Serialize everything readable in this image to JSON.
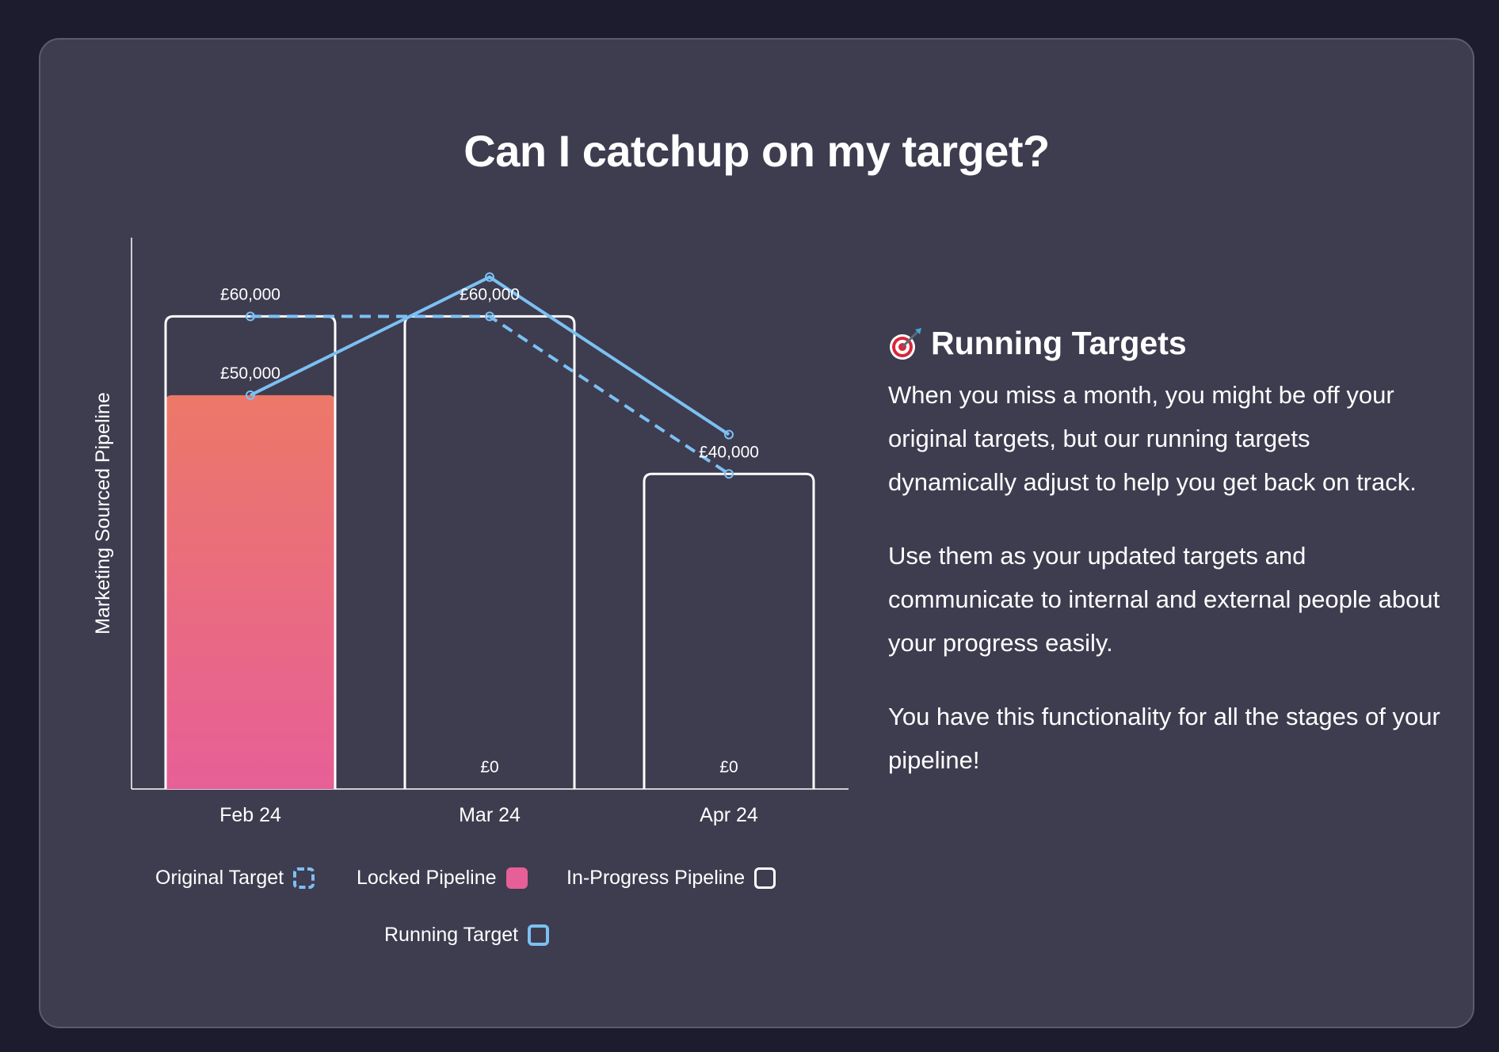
{
  "title": "Can I catchup on my target?",
  "chart_data": {
    "type": "bar",
    "title": "",
    "ylabel": "Marketing Sourced Pipeline",
    "xlabel": "",
    "categories": [
      "Feb 24",
      "Mar 24",
      "Apr 24"
    ],
    "ylim": [
      0,
      70000
    ],
    "series": [
      {
        "name": "Original Target",
        "kind": "line",
        "style": "dashed",
        "color": "#7cc0f3",
        "values": [
          60000,
          60000,
          40000
        ],
        "labels": [
          "£60,000",
          "£60,000",
          "£40,000"
        ]
      },
      {
        "name": "Locked Pipeline",
        "kind": "bar",
        "color": "#e75f97",
        "values": [
          50000,
          0,
          0
        ],
        "labels": [
          "£50,000",
          "",
          ""
        ]
      },
      {
        "name": "In-Progress Pipeline",
        "kind": "bar-outline",
        "color": "#ffffff",
        "values": [
          60000,
          60000,
          40000
        ],
        "labels": [
          "",
          "£0",
          "£0"
        ]
      },
      {
        "name": "Running Target",
        "kind": "line",
        "style": "solid",
        "color": "#7cc0f3",
        "values": [
          50000,
          65000,
          45000
        ]
      }
    ],
    "grid": false,
    "legend_position": "bottom"
  },
  "legend": {
    "original_target": "Original Target",
    "locked_pipeline": "Locked Pipeline",
    "in_progress_pipeline": "In-Progress Pipeline",
    "running_target": "Running Target"
  },
  "info": {
    "icon": "target-icon",
    "heading": "Running Targets",
    "paragraphs": [
      "When you miss a month, you might be off your original targets, but our running targets dynamically adjust to help you get back on track.",
      "Use them as your updated targets and communicate to internal and external people about your progress easily.",
      "You have this functionality for all the stages of your pipeline!"
    ]
  },
  "colors": {
    "background": "#1d1c2e",
    "card": "#3e3c4f",
    "target_line": "#7cc0f3",
    "locked_top": "#ec7868",
    "locked_bottom": "#e75f97"
  }
}
